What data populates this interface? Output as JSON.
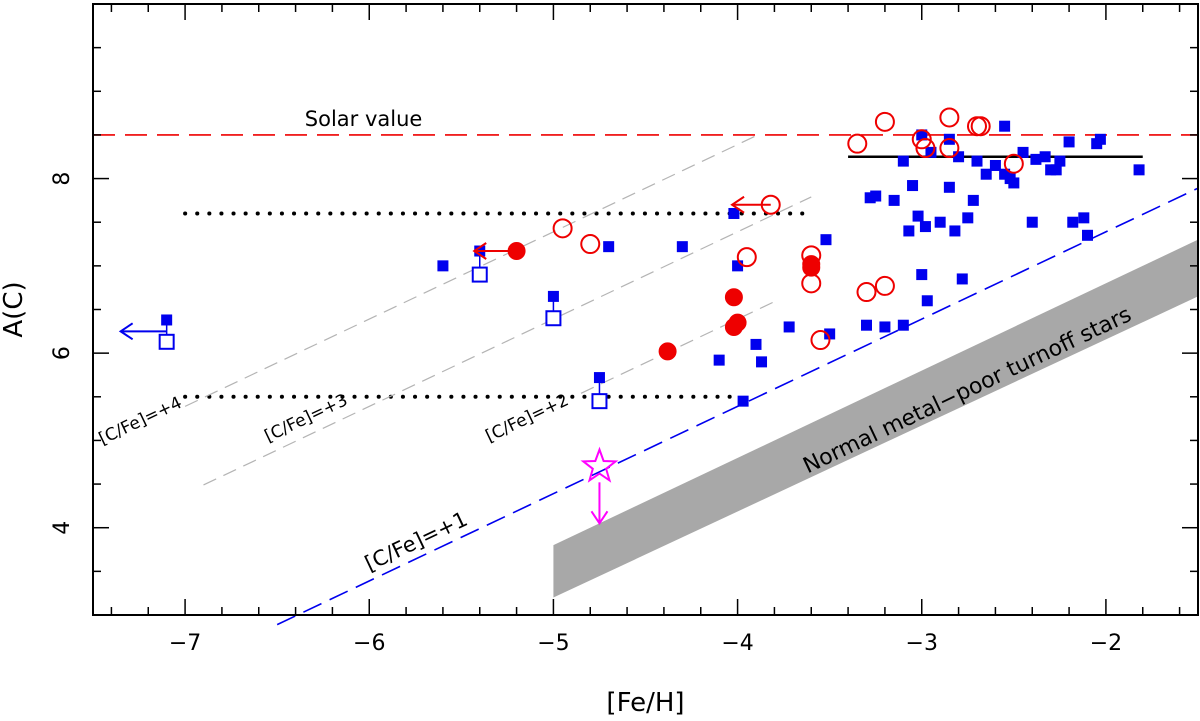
{
  "chart_data": {
    "type": "scatter",
    "xlabel": "[Fe/H]",
    "ylabel": "A(C)",
    "xlim": [
      -7.5,
      -1.5
    ],
    "ylim": [
      3.0,
      10.0
    ],
    "x_ticks": [
      -7,
      -6,
      -5,
      -4,
      -3,
      -2
    ],
    "x_tick_labels": [
      "−7",
      "−6",
      "−5",
      "−4",
      "−3",
      "−2"
    ],
    "y_ticks": [
      4,
      6,
      8
    ],
    "y_tick_labels": [
      "4",
      "6",
      "8"
    ],
    "x_minor_step": 0.2,
    "y_minor_step": 0.5,
    "colors": {
      "blue": "#0000ee",
      "red": "#ee0000",
      "magenta": "#ff00ff",
      "band": "#a8a8a8"
    },
    "annotations": {
      "solar_value": "Solar value",
      "band_label": "Normal metal−poor turnoff stars",
      "cfe4": "[C/Fe]=+4",
      "cfe3": "[C/Fe]=+3",
      "cfe2": "[C/Fe]=+2",
      "cfe1": "[C/Fe]=+1"
    },
    "reference_lines": {
      "solar_ac": 8.5,
      "solid_plateau": {
        "x": [
          -3.4,
          -1.8
        ],
        "y": 8.25
      },
      "dotted_upper": {
        "x": [
          -7.0,
          -3.6
        ],
        "y": 7.6
      },
      "dotted_lower": {
        "x": [
          -7.0,
          -4.0
        ],
        "y": 5.5
      },
      "cfe_lines": [
        {
          "label": "[C/Fe]=+1",
          "offset": 9.39,
          "x": [
            -6.5,
            -1.5
          ]
        },
        {
          "label": "[C/Fe]=+2",
          "offset": 10.39,
          "x": [
            -4.85,
            -3.8
          ]
        },
        {
          "label": "[C/Fe]=+3",
          "offset": 11.39,
          "x": [
            -6.9,
            -3.6
          ]
        },
        {
          "label": "[C/Fe]=+4",
          "offset": 12.39,
          "x": [
            -7.0,
            -3.9
          ]
        }
      ]
    },
    "band": {
      "label": "Normal metal−poor turnoff stars",
      "polygon": [
        [
          -5.0,
          3.8
        ],
        [
          -1.5,
          7.3
        ],
        [
          -1.5,
          6.65
        ],
        [
          -5.0,
          3.2
        ]
      ]
    },
    "series": [
      {
        "name": "blue filled squares",
        "marker": "filled-square",
        "points": [
          [
            -7.1,
            6.38
          ],
          [
            -5.6,
            7.0
          ],
          [
            -5.4,
            7.17
          ],
          [
            -5.0,
            6.65
          ],
          [
            -4.75,
            5.72
          ],
          [
            -4.7,
            7.22
          ],
          [
            -4.3,
            7.22
          ],
          [
            -4.1,
            5.92
          ],
          [
            -4.02,
            7.6
          ],
          [
            -4.0,
            7.0
          ],
          [
            -3.97,
            5.45
          ],
          [
            -3.9,
            6.1
          ],
          [
            -3.87,
            5.9
          ],
          [
            -3.72,
            6.3
          ],
          [
            -3.52,
            7.3
          ],
          [
            -3.5,
            6.22
          ],
          [
            -3.3,
            6.32
          ],
          [
            -3.28,
            7.78
          ],
          [
            -3.25,
            7.8
          ],
          [
            -3.2,
            6.3
          ],
          [
            -3.15,
            7.75
          ],
          [
            -3.1,
            6.32
          ],
          [
            -3.1,
            8.2
          ],
          [
            -3.07,
            7.4
          ],
          [
            -3.05,
            7.92
          ],
          [
            -3.02,
            7.57
          ],
          [
            -3.0,
            6.9
          ],
          [
            -3.0,
            8.5
          ],
          [
            -2.98,
            7.45
          ],
          [
            -2.97,
            6.6
          ],
          [
            -2.95,
            8.3
          ],
          [
            -2.9,
            7.5
          ],
          [
            -2.85,
            7.9
          ],
          [
            -2.85,
            8.45
          ],
          [
            -2.82,
            7.4
          ],
          [
            -2.8,
            8.25
          ],
          [
            -2.78,
            6.85
          ],
          [
            -2.75,
            7.55
          ],
          [
            -2.72,
            7.75
          ],
          [
            -2.7,
            8.2
          ],
          [
            -2.65,
            8.05
          ],
          [
            -2.6,
            8.15
          ],
          [
            -2.55,
            8.05
          ],
          [
            -2.52,
            8.0
          ],
          [
            -2.5,
            7.95
          ],
          [
            -2.45,
            8.3
          ],
          [
            -2.4,
            7.5
          ],
          [
            -2.38,
            8.22
          ],
          [
            -2.33,
            8.25
          ],
          [
            -2.3,
            8.1
          ],
          [
            -2.27,
            8.1
          ],
          [
            -2.25,
            8.2
          ],
          [
            -2.2,
            8.42
          ],
          [
            -2.18,
            7.5
          ],
          [
            -2.12,
            7.55
          ],
          [
            -2.1,
            7.35
          ],
          [
            -2.05,
            8.4
          ],
          [
            -2.03,
            8.45
          ],
          [
            -1.82,
            8.1
          ],
          [
            -2.55,
            8.6
          ]
        ]
      },
      {
        "name": "blue open squares (upper limits)",
        "marker": "open-square",
        "points": [
          [
            -7.1,
            6.13
          ],
          [
            -5.4,
            6.9
          ],
          [
            -5.0,
            6.4
          ],
          [
            -4.75,
            5.45
          ]
        ]
      },
      {
        "name": "red open circles",
        "marker": "open-circle",
        "points": [
          [
            -4.95,
            7.43
          ],
          [
            -4.8,
            7.25
          ],
          [
            -3.95,
            7.1
          ],
          [
            -3.82,
            7.7
          ],
          [
            -3.6,
            7.12
          ],
          [
            -3.6,
            6.8
          ],
          [
            -3.55,
            6.15
          ],
          [
            -3.35,
            8.4
          ],
          [
            -3.3,
            6.7
          ],
          [
            -3.2,
            6.77
          ],
          [
            -3.2,
            8.65
          ],
          [
            -3.0,
            8.45
          ],
          [
            -2.98,
            8.35
          ],
          [
            -2.85,
            8.7
          ],
          [
            -2.85,
            8.35
          ],
          [
            -2.7,
            8.6
          ],
          [
            -2.68,
            8.6
          ],
          [
            -2.5,
            8.17
          ]
        ]
      },
      {
        "name": "red filled circles",
        "marker": "filled-circle",
        "points": [
          [
            -5.2,
            7.17
          ],
          [
            -4.38,
            6.02
          ],
          [
            -4.02,
            6.64
          ],
          [
            -4.02,
            6.3
          ],
          [
            -4.0,
            6.35
          ],
          [
            -3.6,
            6.98
          ],
          [
            -3.6,
            7.02
          ]
        ]
      },
      {
        "name": "magenta star (upper limit)",
        "marker": "open-star",
        "points": [
          [
            -4.75,
            4.7
          ]
        ]
      }
    ],
    "limit_arrows": [
      {
        "from": [
          -7.1,
          6.25
        ],
        "to": [
          -7.35,
          6.25
        ],
        "color": "blue"
      },
      {
        "from": [
          -5.2,
          7.17
        ],
        "to": [
          -5.43,
          7.17
        ],
        "color": "red"
      },
      {
        "from": [
          -3.82,
          7.7
        ],
        "to": [
          -4.03,
          7.7
        ],
        "color": "red"
      },
      {
        "from": [
          -4.75,
          4.52
        ],
        "to": [
          -4.75,
          4.05
        ],
        "color": "magenta"
      }
    ],
    "connectors": [
      {
        "from": [
          -7.1,
          6.38
        ],
        "to": [
          -7.1,
          6.13
        ]
      },
      {
        "from": [
          -5.4,
          7.17
        ],
        "to": [
          -5.4,
          6.9
        ]
      },
      {
        "from": [
          -5.0,
          6.65
        ],
        "to": [
          -5.0,
          6.4
        ]
      },
      {
        "from": [
          -4.75,
          5.72
        ],
        "to": [
          -4.75,
          5.45
        ]
      }
    ]
  }
}
